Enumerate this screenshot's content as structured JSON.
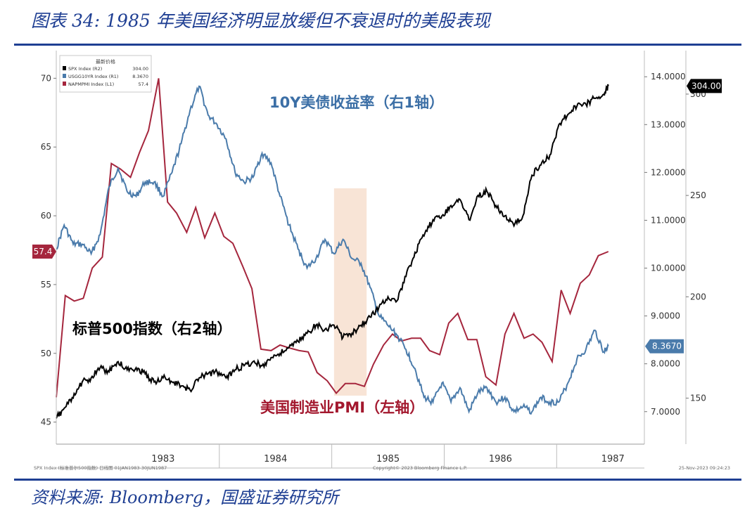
{
  "figure": {
    "title": "图表 34:  1985 年美国经济明显放缓但不衰退时的美股表现",
    "source": "资料来源:  Bloomberg，国盛证券研究所"
  },
  "colors": {
    "brand": "#1f3f93",
    "spx": "#000000",
    "yield": "#4a7bab",
    "pmi": "#a5263d",
    "highlight": "#f7dfcf"
  },
  "chart_data": {
    "type": "line",
    "title": "",
    "legend": {
      "header": "最新价格",
      "placement": "top-left",
      "items": [
        {
          "label": "SPX Index  (R2)",
          "value": "304.00",
          "color": "#000000"
        },
        {
          "label": "USGG10YR Index  (R1)",
          "value": "8.3670",
          "color": "#4a7bab"
        },
        {
          "label": "NAPMPMI Index  (L1)",
          "value": "57.4",
          "color": "#a5263d"
        }
      ]
    },
    "x_ticks": [
      "1983",
      "1984",
      "1985",
      "1986",
      "1987"
    ],
    "x_range": [
      1982.55,
      1987.78
    ],
    "axes": {
      "left": {
        "series": "NAPMPMI Index",
        "range": [
          43.5,
          71.5
        ],
        "ticks": [
          45,
          50,
          55,
          60,
          65,
          70
        ]
      },
      "right1": {
        "series": "USGG10YR Index",
        "range": [
          6.35,
          14.4
        ],
        "ticks": [
          "7.0000",
          "8.0000",
          "9.0000",
          "10.0000",
          "11.0000",
          "12.0000",
          "13.0000",
          "14.0000"
        ]
      },
      "right2": {
        "series": "SPX Index",
        "range": [
          128,
          318
        ],
        "ticks": [
          150,
          200,
          250,
          300
        ]
      }
    },
    "last_value_labels": {
      "left": "57.4",
      "right1": "8.3670",
      "right2": "304.00"
    },
    "annotations": {
      "yield_label": "10Y美债收益率（右1轴）",
      "spx_label": "标普500指数（右2轴）",
      "pmi_label": "美国制造业PMI（左轴）"
    },
    "highlight_range": [
      1985.02,
      1985.31
    ],
    "footer": {
      "left": "SPX Index (标准普尔500指数)   日线图 01JAN1983-30JUN1987",
      "center": "Copyright© 2023 Bloomberg Finance L.P.",
      "right": "25-Nov-2023 09:24:23"
    },
    "series": [
      {
        "name": "NAPMPMI Index",
        "axis": "left",
        "x": [
          1982.55,
          1982.63,
          1982.71,
          1982.79,
          1982.87,
          1982.96,
          1983.04,
          1983.12,
          1983.21,
          1983.29,
          1983.37,
          1983.46,
          1983.54,
          1983.62,
          1983.71,
          1983.79,
          1983.87,
          1983.96,
          1984.04,
          1984.12,
          1984.21,
          1984.29,
          1984.37,
          1984.46,
          1984.54,
          1984.62,
          1984.71,
          1984.79,
          1984.87,
          1984.96,
          1985.04,
          1985.12,
          1985.21,
          1985.29,
          1985.37,
          1985.46,
          1985.54,
          1985.62,
          1985.71,
          1985.79,
          1985.87,
          1985.96,
          1986.04,
          1986.12,
          1986.21,
          1986.29,
          1986.37,
          1986.46,
          1986.54,
          1986.62,
          1986.71,
          1986.79,
          1986.87,
          1986.96,
          1987.04,
          1987.12,
          1987.21,
          1987.29,
          1987.37,
          1987.46
        ],
        "values": [
          46.8,
          54.2,
          53.8,
          54.0,
          56.2,
          57.0,
          63.8,
          63.4,
          62.8,
          64.6,
          66.2,
          70.0,
          61.0,
          60.2,
          58.8,
          60.6,
          58.4,
          60.2,
          58.5,
          58.0,
          56.3,
          54.7,
          50.3,
          50.2,
          50.6,
          50.4,
          50.2,
          50.1,
          48.6,
          48.0,
          47.1,
          47.8,
          47.8,
          47.6,
          49.2,
          50.6,
          51.4,
          50.9,
          51.1,
          51.1,
          50.2,
          49.9,
          52.2,
          52.9,
          51.0,
          51.0,
          48.3,
          47.7,
          51.4,
          52.9,
          51.1,
          51.4,
          50.8,
          49.4,
          54.6,
          52.9,
          55.1,
          55.7,
          57.1,
          57.4
        ]
      },
      {
        "name": "USGG10YR Index",
        "axis": "right1",
        "x": [
          1982.55,
          1982.62,
          1982.7,
          1982.78,
          1982.86,
          1982.94,
          1983.02,
          1983.1,
          1983.18,
          1983.26,
          1983.34,
          1983.42,
          1983.5,
          1983.58,
          1983.66,
          1983.74,
          1983.82,
          1983.9,
          1983.98,
          1984.06,
          1984.14,
          1984.22,
          1984.3,
          1984.38,
          1984.46,
          1984.54,
          1984.62,
          1984.7,
          1984.78,
          1984.86,
          1984.94,
          1985.02,
          1985.1,
          1985.18,
          1985.26,
          1985.34,
          1985.42,
          1985.5,
          1985.58,
          1985.66,
          1985.74,
          1985.82,
          1985.9,
          1985.98,
          1986.06,
          1986.14,
          1986.22,
          1986.3,
          1986.38,
          1986.46,
          1986.54,
          1986.62,
          1986.7,
          1986.78,
          1986.86,
          1986.94,
          1987.02,
          1987.1,
          1987.18,
          1987.26,
          1987.34,
          1987.42,
          1987.46
        ],
        "values": [
          10.4,
          10.9,
          10.5,
          10.5,
          10.3,
          10.7,
          11.7,
          12.1,
          11.6,
          11.5,
          11.8,
          11.8,
          11.5,
          12.0,
          12.6,
          13.3,
          13.8,
          13.2,
          13.0,
          12.7,
          12.0,
          11.8,
          11.9,
          12.4,
          12.2,
          11.5,
          10.9,
          10.4,
          10.0,
          10.2,
          10.6,
          10.3,
          10.6,
          10.2,
          10.1,
          9.6,
          9.0,
          8.8,
          8.6,
          8.3,
          7.9,
          7.3,
          7.2,
          7.6,
          7.2,
          7.5,
          7.0,
          7.4,
          7.5,
          7.2,
          7.3,
          7.0,
          7.1,
          7.0,
          7.3,
          7.2,
          7.2,
          7.6,
          8.1,
          8.3,
          8.7,
          8.25,
          8.37
        ]
      },
      {
        "name": "SPX Index",
        "axis": "right2",
        "x": [
          1982.55,
          1982.62,
          1982.7,
          1982.78,
          1982.86,
          1982.94,
          1983.02,
          1983.1,
          1983.18,
          1983.26,
          1983.34,
          1983.42,
          1983.5,
          1983.58,
          1983.66,
          1983.74,
          1983.82,
          1983.9,
          1983.98,
          1984.06,
          1984.14,
          1984.22,
          1984.3,
          1984.38,
          1984.46,
          1984.54,
          1984.62,
          1984.7,
          1984.78,
          1984.86,
          1984.94,
          1985.02,
          1985.1,
          1985.18,
          1985.26,
          1985.34,
          1985.42,
          1985.5,
          1985.58,
          1985.66,
          1985.74,
          1985.82,
          1985.9,
          1985.98,
          1986.06,
          1986.14,
          1986.22,
          1986.3,
          1986.38,
          1986.46,
          1986.54,
          1986.62,
          1986.7,
          1986.78,
          1986.86,
          1986.94,
          1987.02,
          1987.1,
          1987.18,
          1987.26,
          1987.34,
          1987.42,
          1987.46
        ],
        "values": [
          140,
          145,
          150,
          158,
          160,
          165,
          163,
          168,
          164,
          165,
          162,
          158,
          160,
          158,
          156,
          154,
          160,
          162,
          163,
          160,
          164,
          166,
          168,
          166,
          170,
          172,
          175,
          178,
          182,
          186,
          184,
          186,
          180,
          182,
          186,
          190,
          195,
          200,
          198,
          210,
          222,
          230,
          238,
          240,
          245,
          248,
          238,
          250,
          252,
          245,
          240,
          235,
          240,
          260,
          265,
          270,
          285,
          290,
          294,
          295,
          298,
          300,
          304
        ]
      }
    ]
  }
}
